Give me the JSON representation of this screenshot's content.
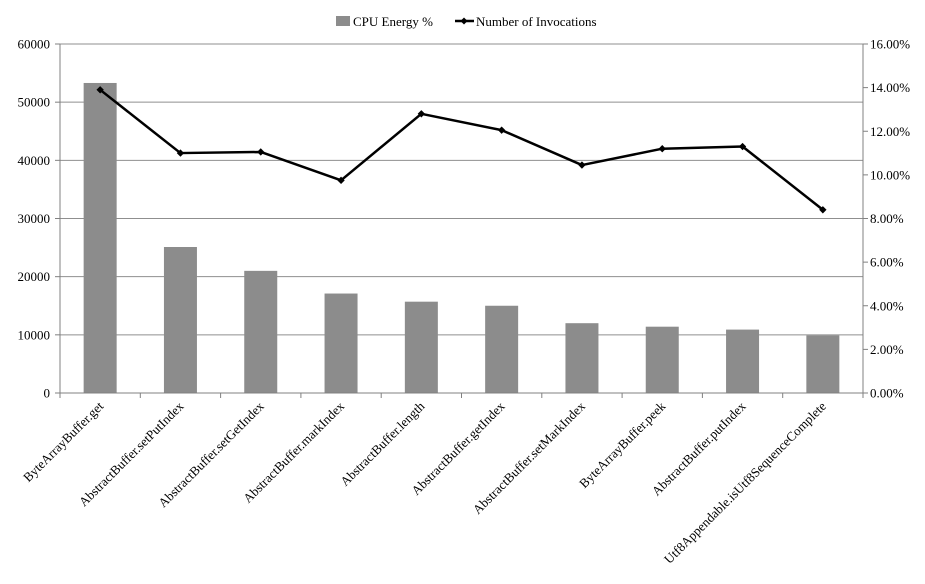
{
  "chart_data": {
    "type": "bar",
    "title": "",
    "xlabel": "",
    "ylabel": "",
    "categories": [
      "ByteArrayBuffer.get",
      "AbstractBuffer.setPutIndex",
      "AbstractBuffer.setGetIndex",
      "AbstractBuffer.markIndex",
      "AbstractBuffer.length",
      "AbstractBuffer.getIndex",
      "AbstractBuffer.setMarkIndex",
      "ByteArrayBuffer.peek",
      "AbstractBuffer.putIndex",
      "Utf8Appendable.isUtf8SequenceComplete"
    ],
    "series": [
      {
        "name": "CPU Energy %",
        "type": "bar",
        "axis": "left",
        "color": "#8c8c8c",
        "values": [
          53300,
          25100,
          21000,
          17100,
          15700,
          15000,
          12000,
          11400,
          10900,
          9900
        ]
      },
      {
        "name": "Number of Invocations",
        "type": "line",
        "axis": "right",
        "color": "#000000",
        "values": [
          0.139,
          0.11,
          0.1105,
          0.0975,
          0.128,
          0.1205,
          0.1045,
          0.112,
          0.113,
          0.084
        ]
      }
    ],
    "ylim": [
      0,
      60000
    ],
    "yticks": [
      "0",
      "10000",
      "20000",
      "30000",
      "40000",
      "50000",
      "60000"
    ],
    "y2lim": [
      0,
      0.16
    ],
    "y2ticks": [
      "0.00%",
      "2.00%",
      "4.00%",
      "6.00%",
      "8.00%",
      "10.00%",
      "12.00%",
      "14.00%",
      "16.00%"
    ],
    "grid": true,
    "legend_position": "top-center",
    "legend": [
      {
        "label": "CPU Energy %",
        "symbol": "bar-swatch"
      },
      {
        "label": "Number of Invocations",
        "symbol": "line-diamond"
      }
    ]
  }
}
